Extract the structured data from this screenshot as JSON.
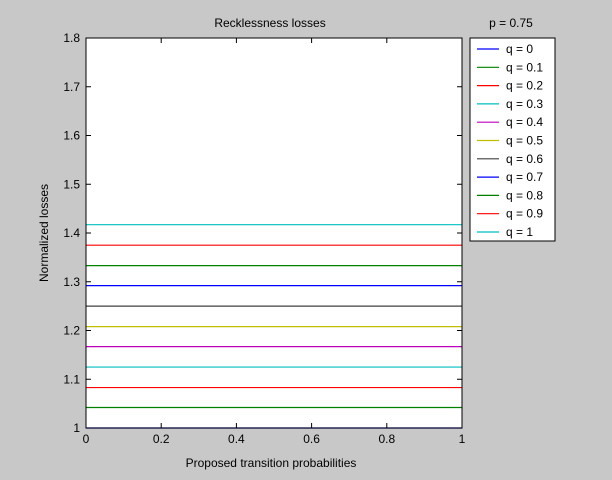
{
  "chart_data": {
    "type": "line",
    "title": "Recklessness losses",
    "annotation": "p = 0.75",
    "xlabel": "Proposed transition probabilities",
    "ylabel": "Normalized losses",
    "xlim": [
      0,
      1
    ],
    "ylim": [
      1,
      1.8
    ],
    "x_ticks": [
      "0",
      "0.2",
      "0.4",
      "0.6",
      "0.8",
      "1"
    ],
    "y_ticks": [
      "1",
      "1.1",
      "1.2",
      "1.3",
      "1.4",
      "1.5",
      "1.6",
      "1.7",
      "1.8"
    ],
    "grid": false,
    "legend_position": "outside-top-right",
    "series": [
      {
        "name": "q = 0",
        "color": "#0000ff",
        "x": [
          0,
          1
        ],
        "y": [
          1.0,
          1.0
        ]
      },
      {
        "name": "q = 0.1",
        "color": "#008000",
        "x": [
          0,
          1
        ],
        "y": [
          1.042,
          1.042
        ]
      },
      {
        "name": "q = 0.2",
        "color": "#ff0000",
        "x": [
          0,
          1
        ],
        "y": [
          1.083,
          1.083
        ]
      },
      {
        "name": "q = 0.3",
        "color": "#00bfbf",
        "x": [
          0,
          1
        ],
        "y": [
          1.125,
          1.125
        ]
      },
      {
        "name": "q = 0.4",
        "color": "#bf00bf",
        "x": [
          0,
          1
        ],
        "y": [
          1.167,
          1.167
        ]
      },
      {
        "name": "q = 0.5",
        "color": "#bfbf00",
        "x": [
          0,
          1
        ],
        "y": [
          1.208,
          1.208
        ]
      },
      {
        "name": "q = 0.6",
        "color": "#404040",
        "x": [
          0,
          1
        ],
        "y": [
          1.25,
          1.25
        ]
      },
      {
        "name": "q = 0.7",
        "color": "#0000ff",
        "x": [
          0,
          1
        ],
        "y": [
          1.292,
          1.292
        ]
      },
      {
        "name": "q = 0.8",
        "color": "#008000",
        "x": [
          0,
          1
        ],
        "y": [
          1.333,
          1.333
        ]
      },
      {
        "name": "q = 0.9",
        "color": "#ff0000",
        "x": [
          0,
          1
        ],
        "y": [
          1.375,
          1.375
        ]
      },
      {
        "name": "q = 1",
        "color": "#00bfbf",
        "x": [
          0,
          1
        ],
        "y": [
          1.417,
          1.417
        ]
      }
    ]
  }
}
